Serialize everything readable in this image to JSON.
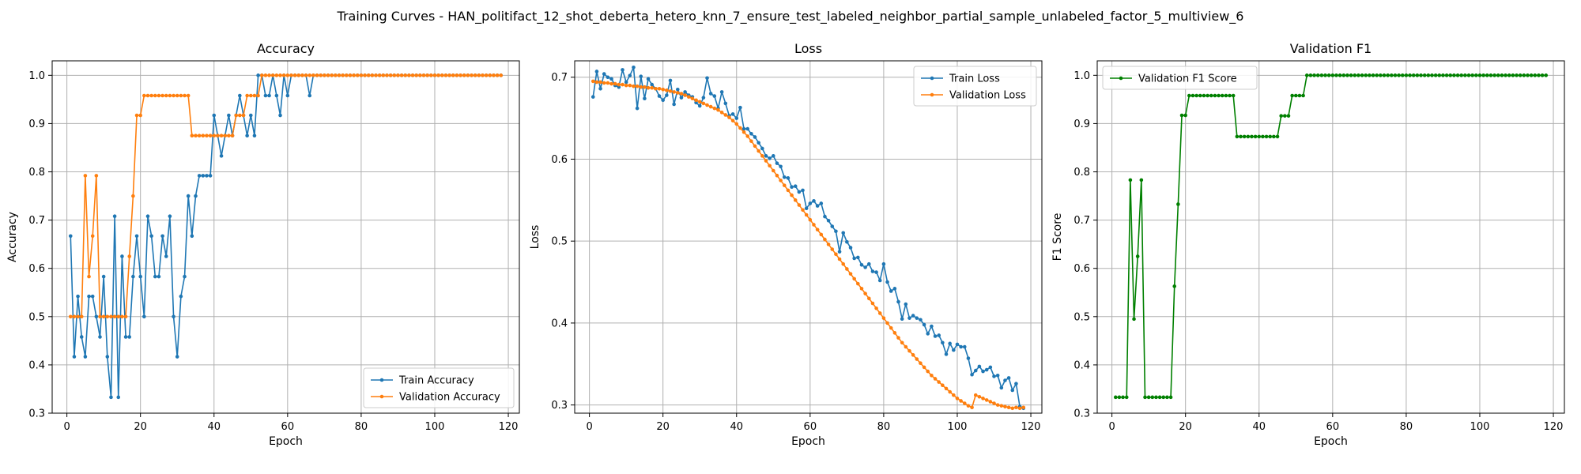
{
  "title": "Training Curves - HAN_politifact_12_shot_deberta_hetero_knn_7_ensure_test_labeled_neighbor_partial_sample_unlabeled_factor_5_multiview_6",
  "chart_data": [
    {
      "type": "line",
      "title": "Accuracy",
      "xlabel": "Epoch",
      "ylabel": "Accuracy",
      "xlim": [
        -4,
        123
      ],
      "ylim": [
        0.3,
        1.03
      ],
      "xticks": [
        0,
        20,
        40,
        60,
        80,
        100,
        120
      ],
      "yticks": [
        0.3,
        0.4,
        0.5,
        0.6,
        0.7,
        0.8,
        0.9,
        1.0
      ],
      "ytick_labels": [
        "0.3",
        "0.4",
        "0.5",
        "0.6",
        "0.7",
        "0.8",
        "0.9",
        "1.0"
      ],
      "grid": true,
      "legend_position": "lower-right",
      "series": [
        {
          "name": "Train Accuracy",
          "color": "#1f77b4",
          "values": [
            0.667,
            0.417,
            0.542,
            0.458,
            0.417,
            0.542,
            0.542,
            0.5,
            0.458,
            0.583,
            0.417,
            0.333,
            0.708,
            0.333,
            0.625,
            0.458,
            0.458,
            0.583,
            0.667,
            0.583,
            0.5,
            0.708,
            0.667,
            0.583,
            0.583,
            0.667,
            0.625,
            0.708,
            0.5,
            0.417,
            0.542,
            0.583,
            0.75,
            0.667,
            0.75,
            0.792,
            0.792,
            0.792,
            0.792,
            0.917,
            0.875,
            0.833,
            0.875,
            0.917,
            0.875,
            0.917,
            0.958,
            0.917,
            0.875,
            0.917,
            0.875,
            1.0,
            1.0,
            0.958,
            0.958,
            1.0,
            0.958,
            0.917,
            1.0,
            0.958,
            1.0,
            1.0,
            1.0,
            1.0,
            1.0,
            0.958,
            1.0,
            1.0,
            1.0,
            1.0,
            1.0,
            1.0,
            1.0,
            1.0,
            1.0,
            1.0,
            1.0,
            1.0,
            1.0,
            1.0,
            1.0,
            1.0,
            1.0,
            1.0,
            1.0,
            1.0,
            1.0,
            1.0,
            1.0,
            1.0,
            1.0,
            1.0,
            1.0,
            1.0,
            1.0,
            1.0,
            1.0,
            1.0,
            1.0,
            1.0,
            1.0,
            1.0,
            1.0,
            1.0,
            1.0,
            1.0,
            1.0,
            1.0,
            1.0,
            1.0,
            1.0,
            1.0,
            1.0,
            1.0,
            1.0,
            1.0,
            1.0,
            1.0
          ]
        },
        {
          "name": "Validation Accuracy",
          "color": "#ff7f0e",
          "values": [
            0.5,
            0.5,
            0.5,
            0.5,
            0.792,
            0.583,
            0.667,
            0.792,
            0.5,
            0.5,
            0.5,
            0.5,
            0.5,
            0.5,
            0.5,
            0.5,
            0.625,
            0.75,
            0.917,
            0.917,
            0.958,
            0.958,
            0.958,
            0.958,
            0.958,
            0.958,
            0.958,
            0.958,
            0.958,
            0.958,
            0.958,
            0.958,
            0.958,
            0.875,
            0.875,
            0.875,
            0.875,
            0.875,
            0.875,
            0.875,
            0.875,
            0.875,
            0.875,
            0.875,
            0.875,
            0.917,
            0.917,
            0.917,
            0.958,
            0.958,
            0.958,
            0.958,
            1.0,
            1.0,
            1.0,
            1.0,
            1.0,
            1.0,
            1.0,
            1.0,
            1.0,
            1.0,
            1.0,
            1.0,
            1.0,
            1.0,
            1.0,
            1.0,
            1.0,
            1.0,
            1.0,
            1.0,
            1.0,
            1.0,
            1.0,
            1.0,
            1.0,
            1.0,
            1.0,
            1.0,
            1.0,
            1.0,
            1.0,
            1.0,
            1.0,
            1.0,
            1.0,
            1.0,
            1.0,
            1.0,
            1.0,
            1.0,
            1.0,
            1.0,
            1.0,
            1.0,
            1.0,
            1.0,
            1.0,
            1.0,
            1.0,
            1.0,
            1.0,
            1.0,
            1.0,
            1.0,
            1.0,
            1.0,
            1.0,
            1.0,
            1.0,
            1.0,
            1.0,
            1.0,
            1.0,
            1.0,
            1.0,
            1.0
          ]
        }
      ]
    },
    {
      "type": "line",
      "title": "Loss",
      "xlabel": "Epoch",
      "ylabel": "Loss",
      "xlim": [
        -4,
        123
      ],
      "ylim": [
        0.29,
        0.72
      ],
      "xticks": [
        0,
        20,
        40,
        60,
        80,
        100,
        120
      ],
      "yticks": [
        0.3,
        0.4,
        0.5,
        0.6,
        0.7
      ],
      "ytick_labels": [
        "0.3",
        "0.4",
        "0.5",
        "0.6",
        "0.7"
      ],
      "grid": true,
      "legend_position": "upper-right",
      "series": [
        {
          "name": "Train Loss",
          "color": "#1f77b4",
          "values": [
            0.676,
            0.707,
            0.686,
            0.704,
            0.7,
            0.698,
            0.69,
            0.688,
            0.709,
            0.694,
            0.702,
            0.712,
            0.662,
            0.701,
            0.674,
            0.698,
            0.691,
            0.686,
            0.677,
            0.672,
            0.678,
            0.696,
            0.667,
            0.685,
            0.675,
            0.682,
            0.678,
            0.676,
            0.669,
            0.665,
            0.675,
            0.699,
            0.68,
            0.677,
            0.662,
            0.682,
            0.668,
            0.653,
            0.655,
            0.65,
            0.663,
            0.637,
            0.637,
            0.631,
            0.627,
            0.62,
            0.613,
            0.604,
            0.601,
            0.604,
            0.595,
            0.591,
            0.578,
            0.577,
            0.566,
            0.567,
            0.56,
            0.562,
            0.54,
            0.546,
            0.549,
            0.543,
            0.546,
            0.53,
            0.525,
            0.518,
            0.512,
            0.487,
            0.51,
            0.499,
            0.492,
            0.479,
            0.48,
            0.471,
            0.468,
            0.472,
            0.463,
            0.462,
            0.452,
            0.472,
            0.45,
            0.439,
            0.442,
            0.426,
            0.405,
            0.423,
            0.406,
            0.409,
            0.406,
            0.404,
            0.398,
            0.387,
            0.396,
            0.384,
            0.385,
            0.376,
            0.362,
            0.375,
            0.367,
            0.374,
            0.371,
            0.371,
            0.357,
            0.337,
            0.342,
            0.347,
            0.341,
            0.343,
            0.346,
            0.335,
            0.336,
            0.321,
            0.33,
            0.333,
            0.318,
            0.326,
            0.298,
            0.296
          ]
        },
        {
          "name": "Validation Loss",
          "color": "#ff7f0e",
          "values": [
            0.695,
            0.694,
            0.694,
            0.693,
            0.693,
            0.692,
            0.692,
            0.691,
            0.691,
            0.69,
            0.69,
            0.689,
            0.689,
            0.688,
            0.688,
            0.687,
            0.687,
            0.686,
            0.686,
            0.685,
            0.684,
            0.683,
            0.682,
            0.681,
            0.68,
            0.678,
            0.676,
            0.674,
            0.672,
            0.67,
            0.668,
            0.666,
            0.664,
            0.662,
            0.66,
            0.657,
            0.654,
            0.651,
            0.647,
            0.643,
            0.638,
            0.633,
            0.628,
            0.622,
            0.616,
            0.61,
            0.604,
            0.598,
            0.592,
            0.586,
            0.58,
            0.574,
            0.568,
            0.562,
            0.556,
            0.55,
            0.544,
            0.538,
            0.532,
            0.526,
            0.52,
            0.514,
            0.508,
            0.502,
            0.496,
            0.49,
            0.484,
            0.478,
            0.472,
            0.466,
            0.46,
            0.454,
            0.448,
            0.442,
            0.436,
            0.43,
            0.424,
            0.418,
            0.412,
            0.406,
            0.4,
            0.394,
            0.388,
            0.382,
            0.376,
            0.371,
            0.366,
            0.361,
            0.356,
            0.351,
            0.346,
            0.341,
            0.336,
            0.332,
            0.328,
            0.324,
            0.32,
            0.316,
            0.312,
            0.308,
            0.305,
            0.302,
            0.299,
            0.297,
            0.312,
            0.31,
            0.308,
            0.306,
            0.304,
            0.302,
            0.3,
            0.299,
            0.298,
            0.297,
            0.296,
            0.297,
            0.296,
            0.297
          ]
        }
      ]
    },
    {
      "type": "line",
      "title": "Validation F1",
      "xlabel": "Epoch",
      "ylabel": "F1 Score",
      "xlim": [
        -4,
        123
      ],
      "ylim": [
        0.3,
        1.03
      ],
      "xticks": [
        0,
        20,
        40,
        60,
        80,
        100,
        120
      ],
      "yticks": [
        0.3,
        0.4,
        0.5,
        0.6,
        0.7,
        0.8,
        0.9,
        1.0
      ],
      "ytick_labels": [
        "0.3",
        "0.4",
        "0.5",
        "0.6",
        "0.7",
        "0.8",
        "0.9",
        "1.0"
      ],
      "grid": true,
      "legend_position": "upper-left",
      "series": [
        {
          "name": "Validation F1 Score",
          "color": "#008000",
          "values": [
            0.333,
            0.333,
            0.333,
            0.333,
            0.783,
            0.495,
            0.625,
            0.783,
            0.333,
            0.333,
            0.333,
            0.333,
            0.333,
            0.333,
            0.333,
            0.333,
            0.563,
            0.733,
            0.917,
            0.917,
            0.958,
            0.958,
            0.958,
            0.958,
            0.958,
            0.958,
            0.958,
            0.958,
            0.958,
            0.958,
            0.958,
            0.958,
            0.958,
            0.873,
            0.873,
            0.873,
            0.873,
            0.873,
            0.873,
            0.873,
            0.873,
            0.873,
            0.873,
            0.873,
            0.873,
            0.916,
            0.916,
            0.916,
            0.958,
            0.958,
            0.958,
            0.958,
            1.0,
            1.0,
            1.0,
            1.0,
            1.0,
            1.0,
            1.0,
            1.0,
            1.0,
            1.0,
            1.0,
            1.0,
            1.0,
            1.0,
            1.0,
            1.0,
            1.0,
            1.0,
            1.0,
            1.0,
            1.0,
            1.0,
            1.0,
            1.0,
            1.0,
            1.0,
            1.0,
            1.0,
            1.0,
            1.0,
            1.0,
            1.0,
            1.0,
            1.0,
            1.0,
            1.0,
            1.0,
            1.0,
            1.0,
            1.0,
            1.0,
            1.0,
            1.0,
            1.0,
            1.0,
            1.0,
            1.0,
            1.0,
            1.0,
            1.0,
            1.0,
            1.0,
            1.0,
            1.0,
            1.0,
            1.0,
            1.0,
            1.0,
            1.0,
            1.0,
            1.0,
            1.0,
            1.0,
            1.0,
            1.0,
            1.0
          ]
        }
      ]
    }
  ]
}
